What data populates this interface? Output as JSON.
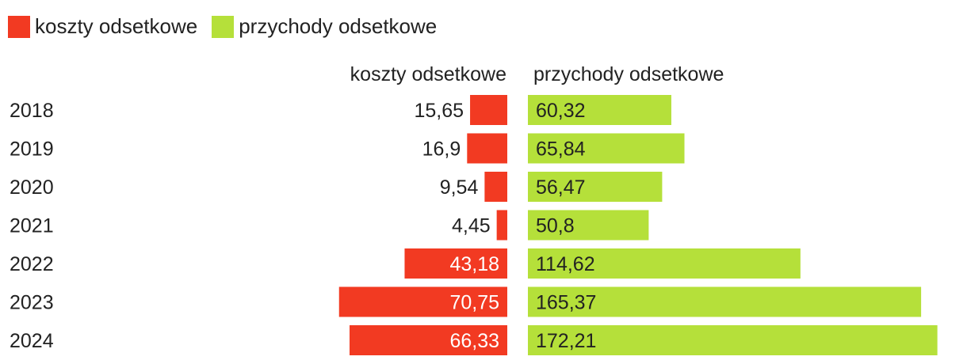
{
  "colors": {
    "costs": "#f23a22",
    "income": "#b5e03a"
  },
  "chart_data": {
    "type": "bar",
    "orientation": "horizontal-diverging",
    "categories": [
      "2018",
      "2019",
      "2020",
      "2021",
      "2022",
      "2023",
      "2024"
    ],
    "series": [
      {
        "name": "koszty odsetkowe",
        "side": "left",
        "values": [
          15.65,
          16.9,
          9.54,
          4.45,
          43.18,
          70.75,
          66.33
        ],
        "labels": [
          "15,65",
          "16,9",
          "9,54",
          "4,45",
          "43,18",
          "70,75",
          "66,33"
        ]
      },
      {
        "name": "przychody odsetkowe",
        "side": "right",
        "values": [
          60.32,
          65.84,
          56.47,
          50.8,
          114.62,
          165.37,
          172.21
        ],
        "labels": [
          "60,32",
          "65,84",
          "56,47",
          "50,8",
          "114,62",
          "165,37",
          "172,21"
        ]
      }
    ],
    "legend": {
      "position": "top-left",
      "items": [
        "koszty odsetkowe",
        "przychody odsetkowe"
      ]
    },
    "column_headers": [
      "koszty odsetkowe",
      "przychody odsetkowe"
    ]
  }
}
